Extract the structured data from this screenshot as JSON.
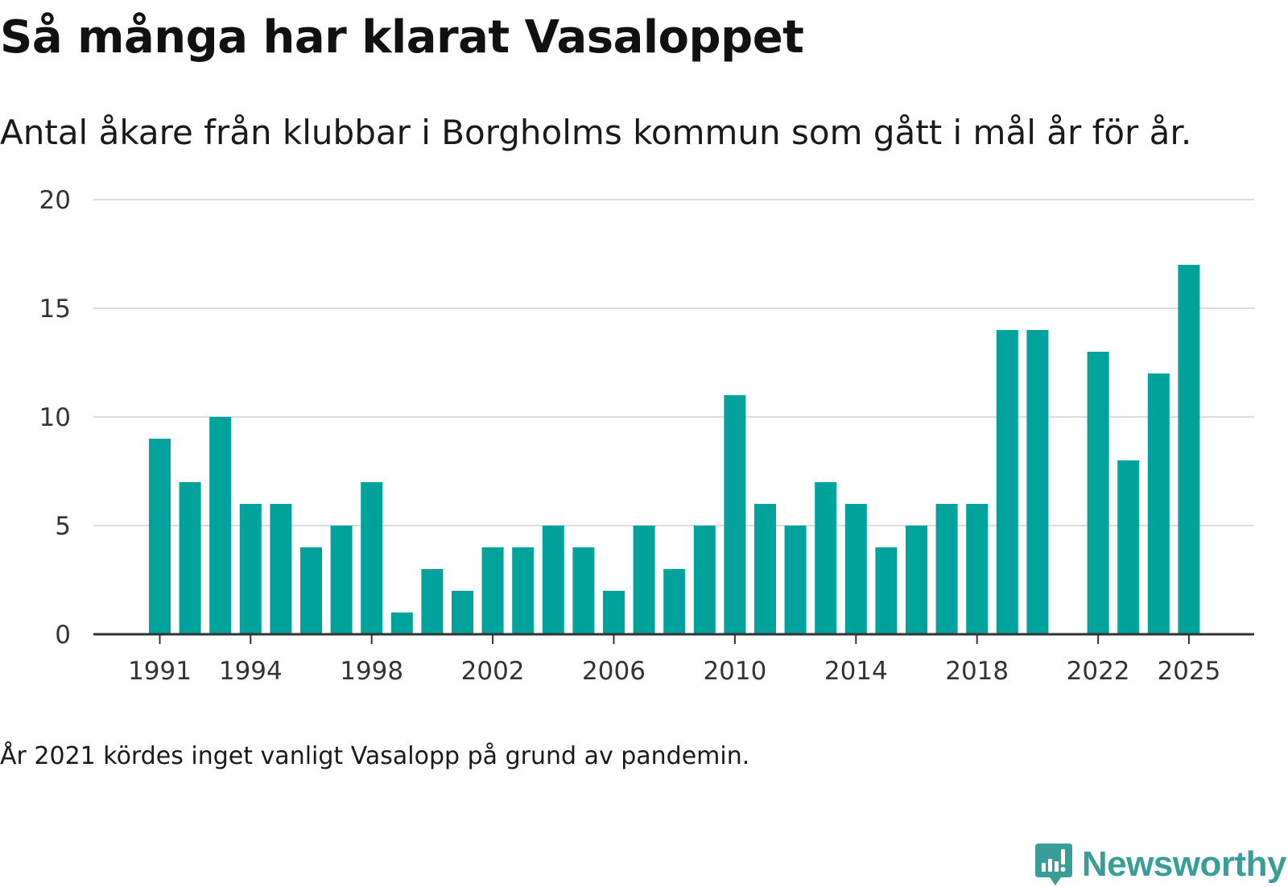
{
  "title": "Så många har klarat Vasaloppet",
  "subtitle": "Antal åkare från klubbar i Borgholms kommun som gått i mål år för år.",
  "note": "År 2021 kördes inget vanligt Vasalopp på grund av pandemin.",
  "brand": {
    "name": "Newsworthy",
    "icon": "newsworthy-logo-icon",
    "color": "#3a9e98"
  },
  "colors": {
    "bar": "#00a39b",
    "grid": "#dcdcdc",
    "axis": "#333333",
    "tick_text": "#333333"
  },
  "chart_data": {
    "type": "bar",
    "title": "Så många har klarat Vasaloppet",
    "xlabel": "",
    "ylabel": "",
    "ylim": [
      0,
      20
    ],
    "y_ticks": [
      0,
      5,
      10,
      15,
      20
    ],
    "x_tick_labels": [
      "1991",
      "1994",
      "1998",
      "2002",
      "2006",
      "2010",
      "2014",
      "2018",
      "2022",
      "2025"
    ],
    "grid": true,
    "categories": [
      1991,
      1992,
      1993,
      1994,
      1995,
      1996,
      1997,
      1998,
      1999,
      2000,
      2001,
      2002,
      2003,
      2004,
      2005,
      2006,
      2007,
      2008,
      2009,
      2010,
      2011,
      2012,
      2013,
      2014,
      2015,
      2016,
      2017,
      2018,
      2019,
      2020,
      2021,
      2022,
      2023,
      2024,
      2025
    ],
    "values": [
      9,
      7,
      10,
      6,
      6,
      4,
      5,
      7,
      1,
      3,
      2,
      4,
      4,
      5,
      4,
      2,
      5,
      3,
      5,
      11,
      6,
      5,
      7,
      6,
      4,
      5,
      6,
      6,
      14,
      14,
      null,
      13,
      8,
      12,
      17
    ]
  }
}
